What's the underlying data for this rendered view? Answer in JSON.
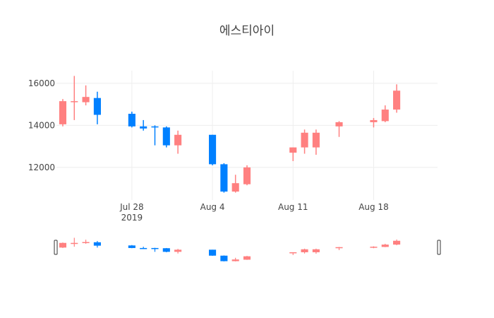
{
  "chart_data": {
    "type": "candlestick",
    "title": "에스티아이",
    "colors": {
      "increasing": "#ff8080",
      "decreasing": "#0080ff"
    },
    "y_ticks": [
      12000,
      14000,
      16000
    ],
    "y_tick_labels": [
      "12000",
      "14000",
      "16000"
    ],
    "x_ticks": [
      "2019-07-28",
      "2019-08-04",
      "2019-08-11",
      "2019-08-18"
    ],
    "x_tick_labels": [
      "Jul 28",
      "Aug 4",
      "Aug 11",
      "Aug 18"
    ],
    "x_year_label": "2019",
    "xlim": [
      "2019-07-22",
      "2019-08-23"
    ],
    "ylim": [
      10450,
      16600
    ],
    "range_slider": true,
    "candles": [
      {
        "date": "2019-07-22",
        "open": 14050,
        "high": 15250,
        "low": 13950,
        "close": 15150
      },
      {
        "date": "2019-07-23",
        "open": 15100,
        "high": 16350,
        "low": 14250,
        "close": 15150
      },
      {
        "date": "2019-07-24",
        "open": 15100,
        "high": 15900,
        "low": 14950,
        "close": 15350
      },
      {
        "date": "2019-07-25",
        "open": 15300,
        "high": 15600,
        "low": 14050,
        "close": 14500
      },
      {
        "date": "2019-07-28",
        "open": 14550,
        "high": 14650,
        "low": 13900,
        "close": 13950
      },
      {
        "date": "2019-07-29",
        "open": 13950,
        "high": 14250,
        "low": 13750,
        "close": 13850
      },
      {
        "date": "2019-07-30",
        "open": 13950,
        "high": 14000,
        "low": 13050,
        "close": 13900
      },
      {
        "date": "2019-07-31",
        "open": 13900,
        "high": 13950,
        "low": 12950,
        "close": 13050
      },
      {
        "date": "2019-08-01",
        "open": 13050,
        "high": 13750,
        "low": 12650,
        "close": 13550
      },
      {
        "date": "2019-08-04",
        "open": 13550,
        "high": 13550,
        "low": 12100,
        "close": 12150
      },
      {
        "date": "2019-08-05",
        "open": 12150,
        "high": 12200,
        "low": 10800,
        "close": 10850
      },
      {
        "date": "2019-08-06",
        "open": 10850,
        "high": 11650,
        "low": 10800,
        "close": 11250
      },
      {
        "date": "2019-08-07",
        "open": 11200,
        "high": 12100,
        "low": 11150,
        "close": 12000
      },
      {
        "date": "2019-08-11",
        "open": 12700,
        "high": 12950,
        "low": 12300,
        "close": 12950
      },
      {
        "date": "2019-08-12",
        "open": 12950,
        "high": 13800,
        "low": 12650,
        "close": 13650
      },
      {
        "date": "2019-08-13",
        "open": 12950,
        "high": 13800,
        "low": 12600,
        "close": 13650
      },
      {
        "date": "2019-08-15",
        "open": 13950,
        "high": 14200,
        "low": 13450,
        "close": 14150
      },
      {
        "date": "2019-08-18",
        "open": 14150,
        "high": 14350,
        "low": 13900,
        "close": 14250
      },
      {
        "date": "2019-08-19",
        "open": 14200,
        "high": 14950,
        "low": 14150,
        "close": 14750
      },
      {
        "date": "2019-08-20",
        "open": 14750,
        "high": 15950,
        "low": 14600,
        "close": 15650
      }
    ]
  }
}
